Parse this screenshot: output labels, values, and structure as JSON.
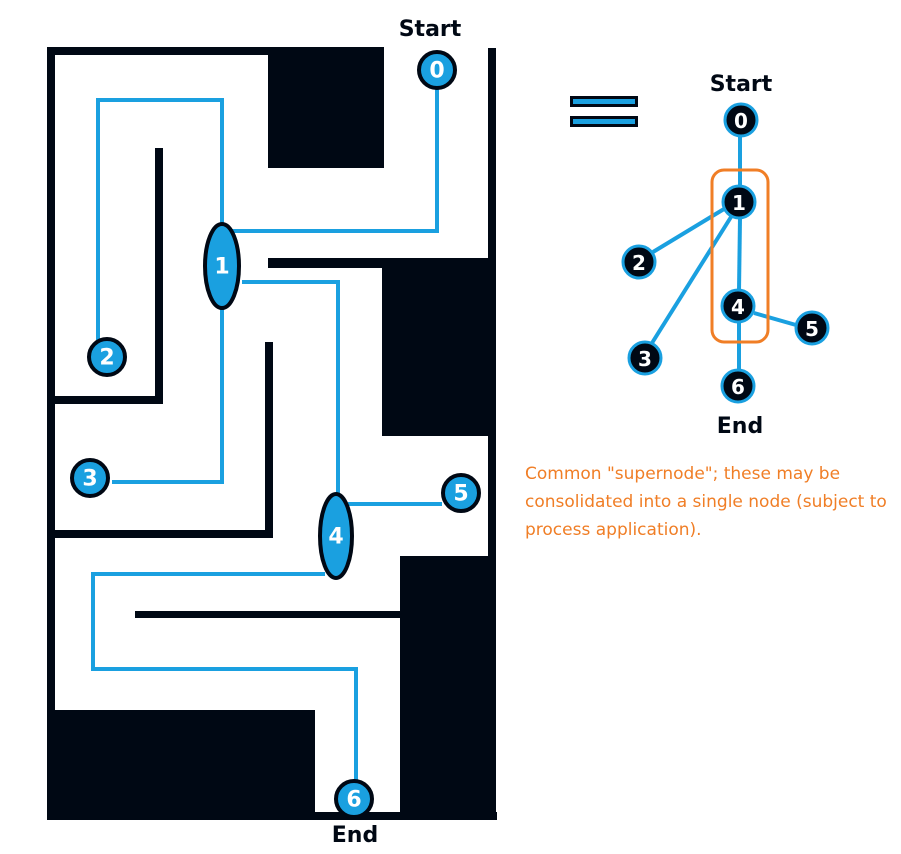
{
  "maze": {
    "start_label": "Start",
    "end_label": "End",
    "nodes": [
      {
        "id": "0",
        "label": "0"
      },
      {
        "id": "1",
        "label": "1"
      },
      {
        "id": "2",
        "label": "2"
      },
      {
        "id": "3",
        "label": "3"
      },
      {
        "id": "4",
        "label": "4"
      },
      {
        "id": "5",
        "label": "5"
      },
      {
        "id": "6",
        "label": "6"
      }
    ]
  },
  "graph": {
    "start_label": "Start",
    "end_label": "End",
    "nodes": [
      {
        "id": "0",
        "label": "0"
      },
      {
        "id": "1",
        "label": "1"
      },
      {
        "id": "2",
        "label": "2"
      },
      {
        "id": "3",
        "label": "3"
      },
      {
        "id": "4",
        "label": "4"
      },
      {
        "id": "5",
        "label": "5"
      },
      {
        "id": "6",
        "label": "6"
      }
    ],
    "edges": [
      [
        "0",
        "1"
      ],
      [
        "1",
        "2"
      ],
      [
        "1",
        "3"
      ],
      [
        "1",
        "4"
      ],
      [
        "4",
        "5"
      ],
      [
        "4",
        "6"
      ]
    ]
  },
  "annotation": "Common \"supernode\";  these may be consolidated into a single node (subject to process application).",
  "colors": {
    "path": "#1aa0e0",
    "wall": "#000814",
    "annotation": "#f07e26"
  }
}
